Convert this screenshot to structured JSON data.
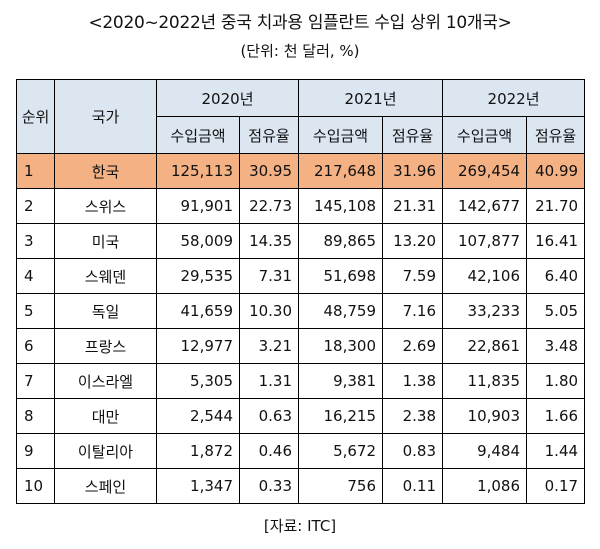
{
  "title": "<2020~2022년 중국 치과용 임플란트 수입 상위 10개국>",
  "unit": "(단위: 천 달러, %)",
  "source": "[자료: ITC]",
  "header": {
    "rank": "순위",
    "country": "국가",
    "years": [
      "2020년",
      "2021년",
      "2022년"
    ],
    "amount": "수입금액",
    "share": "점유율"
  },
  "rows": [
    {
      "rank": "1",
      "country": "한국",
      "cells": [
        "125,113",
        "30.95",
        "217,648",
        "31.96",
        "269,454",
        "40.99"
      ]
    },
    {
      "rank": "2",
      "country": "스위스",
      "cells": [
        "91,901",
        "22.73",
        "145,108",
        "21.31",
        "142,677",
        "21.70"
      ]
    },
    {
      "rank": "3",
      "country": "미국",
      "cells": [
        "58,009",
        "14.35",
        "89,865",
        "13.20",
        "107,877",
        "16.41"
      ]
    },
    {
      "rank": "4",
      "country": "스웨덴",
      "cells": [
        "29,535",
        "7.31",
        "51,698",
        "7.59",
        "42,106",
        "6.40"
      ]
    },
    {
      "rank": "5",
      "country": "독일",
      "cells": [
        "41,659",
        "10.30",
        "48,759",
        "7.16",
        "33,233",
        "5.05"
      ]
    },
    {
      "rank": "6",
      "country": "프랑스",
      "cells": [
        "12,977",
        "3.21",
        "18,300",
        "2.69",
        "22,861",
        "3.48"
      ]
    },
    {
      "rank": "7",
      "country": "이스라엘",
      "cells": [
        "5,305",
        "1.31",
        "9,381",
        "1.38",
        "11,835",
        "1.80"
      ]
    },
    {
      "rank": "8",
      "country": "대만",
      "cells": [
        "2,544",
        "0.63",
        "16,215",
        "2.38",
        "10,903",
        "1.66"
      ]
    },
    {
      "rank": "9",
      "country": "이탈리아",
      "cells": [
        "1,872",
        "0.46",
        "5,672",
        "0.83",
        "9,484",
        "1.44"
      ]
    },
    {
      "rank": "10",
      "country": "스페인",
      "cells": [
        "1,347",
        "0.33",
        "756",
        "0.11",
        "1,086",
        "0.17"
      ]
    }
  ],
  "colors": {
    "header_bg": "#dce6f1",
    "highlight_bg": "#f4b183"
  }
}
